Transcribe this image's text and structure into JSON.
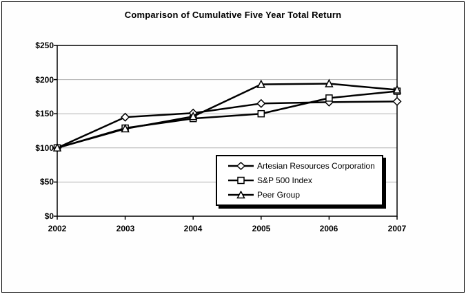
{
  "title": "Comparison of Cumulative Five Year Total Return",
  "colors": {
    "line": "#000000",
    "gridline": "#b0b0b0",
    "marker_fill": "#ffffff",
    "background": "#ffffff",
    "frame_border": "#000000"
  },
  "chart_data": {
    "type": "line",
    "title": "Comparison of Cumulative Five Year Total Return",
    "categories": [
      "2002",
      "2003",
      "2004",
      "2005",
      "2006",
      "2007"
    ],
    "series": [
      {
        "name": "Artesian Resources Corporation",
        "marker": "diamond",
        "values": [
          100,
          145,
          151,
          165,
          167,
          168
        ]
      },
      {
        "name": "S&P 500 Index",
        "marker": "square",
        "values": [
          100,
          129,
          143,
          150,
          173,
          183
        ]
      },
      {
        "name": "Peer Group",
        "marker": "triangle",
        "values": [
          100,
          128,
          146,
          193,
          194,
          185
        ]
      }
    ],
    "xlabel": "",
    "ylabel": "",
    "ylim": [
      0,
      250
    ],
    "ytick_step": 50,
    "ytick_labels_top_down": [
      "$250",
      "$200",
      "$150",
      "$100",
      "$50",
      "$0"
    ],
    "grid": "horizontal-gray",
    "legend_position": "inside-lower-right",
    "legend_entries": [
      "Artesian Resources Corporation",
      "S&P 500 Index",
      "Peer Group"
    ]
  }
}
